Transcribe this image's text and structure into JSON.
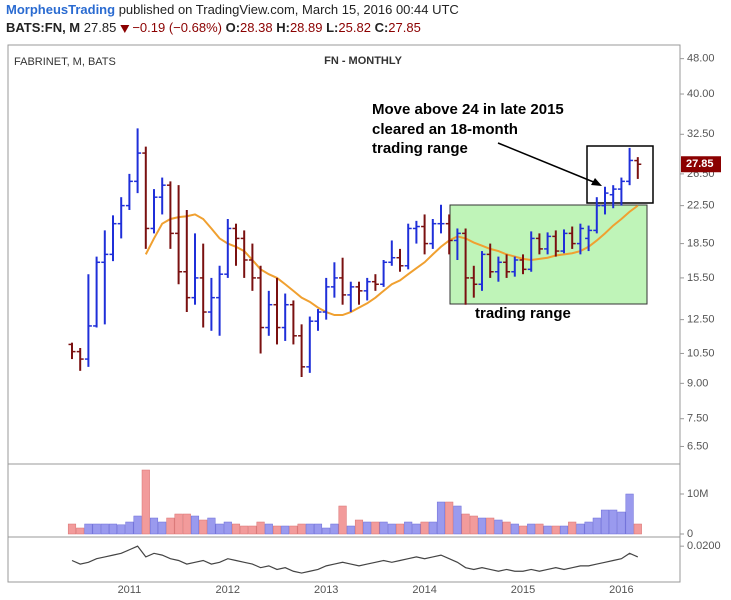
{
  "header": {
    "author": "MorpheusTrading",
    "published": "published on TradingView.com, March 15, 2016 00:44 UTC",
    "symbol": "BATS:FN, M",
    "change": {
      "value": -0.19,
      "label": "−0.19"
    },
    "change_pct": {
      "value": -0.68,
      "label": "(−0.68%)"
    },
    "ohlc_labels": [
      "O:",
      "H:",
      "L:",
      "C:"
    ]
  },
  "chart_data": {
    "type": "ohlc",
    "title": "FN - MONTHLY",
    "subtitle": "FABRINET, M, BATS",
    "annotations": [
      "Move above 24 in late 2015",
      "cleared an 18-month",
      "trading range",
      "trading range"
    ],
    "categories": [
      null,
      null,
      null,
      null,
      null,
      null,
      null,
      "2011",
      null,
      null,
      null,
      null,
      null,
      null,
      null,
      null,
      null,
      null,
      null,
      "2012",
      null,
      null,
      null,
      null,
      null,
      null,
      null,
      null,
      null,
      null,
      null,
      "2013",
      null,
      null,
      null,
      null,
      null,
      null,
      null,
      null,
      null,
      null,
      null,
      "2014",
      null,
      null,
      null,
      null,
      null,
      null,
      null,
      null,
      null,
      null,
      null,
      "2015",
      null,
      null,
      null,
      null,
      null,
      null,
      null,
      null,
      null,
      null,
      null,
      "2016",
      null,
      null
    ],
    "open": [
      11,
      10.6,
      10.2,
      12.1,
      16.8,
      17.5,
      20.5,
      22.5,
      25.5,
      29.5,
      20,
      23.5,
      25,
      19.5,
      16,
      14,
      15.5,
      13,
      14,
      15.8,
      20,
      19,
      17,
      15.5,
      12,
      13.5,
      12,
      13.5,
      11.5,
      9.8,
      12.4,
      13,
      14.8,
      15.5,
      14.2,
      14.8,
      14.5,
      15.2,
      15,
      16.8,
      17.2,
      16.5,
      20,
      20.2,
      18.5,
      20.5,
      20.5,
      18.8,
      19.5,
      15.5,
      15,
      17.5,
      16,
      16.8,
      16,
      17,
      16.2,
      19,
      18,
      19.2,
      17.8,
      19.5,
      18.5,
      19,
      19.8,
      22.5,
      23.8,
      24.5,
      25.5,
      28.38
    ],
    "high": [
      11.1,
      10.8,
      15.8,
      17.3,
      19.8,
      21.4,
      23.5,
      26.5,
      33.5,
      30.5,
      24.5,
      26,
      25.5,
      25,
      22,
      19.5,
      18.5,
      15.5,
      16.5,
      21,
      20.5,
      19.8,
      18.5,
      16.5,
      14.5,
      15.5,
      14.3,
      13.8,
      12.2,
      12.7,
      13.2,
      15.5,
      16.8,
      17.2,
      15.2,
      15.2,
      15.5,
      15.8,
      17,
      18.8,
      18,
      20.5,
      20.8,
      21.5,
      21,
      22.6,
      21.5,
      20,
      20,
      16.5,
      17.8,
      18.5,
      17.3,
      17.5,
      17.3,
      17.5,
      19.7,
      19.5,
      19.6,
      19.8,
      19.9,
      20.2,
      20.5,
      20.3,
      23.5,
      24.8,
      25,
      26,
      30.3,
      28.89
    ],
    "low": [
      10.2,
      9.6,
      9.8,
      12,
      12.2,
      16.9,
      19,
      22,
      24,
      18,
      19.5,
      21.5,
      18,
      15,
      13,
      13.5,
      12,
      11.8,
      11.5,
      15.5,
      16.5,
      15.5,
      14.5,
      10.5,
      11.5,
      11,
      11.2,
      11,
      9.3,
      9.5,
      11.8,
      12.5,
      14,
      13.5,
      13,
      13.5,
      13.8,
      14.5,
      14.8,
      16.5,
      16,
      16.2,
      18.5,
      17.5,
      18,
      19.5,
      17.5,
      17,
      13.5,
      14,
      14.5,
      15.5,
      15.2,
      15.5,
      15.6,
      15.8,
      16,
      17.5,
      17.5,
      17.3,
      17.6,
      18,
      17.5,
      17.8,
      19.5,
      21.5,
      22.2,
      22.5,
      25,
      25.82
    ],
    "close": [
      10.6,
      10.2,
      12.1,
      16.8,
      17.5,
      20.5,
      22.5,
      25.5,
      29.5,
      20,
      23.5,
      25,
      19.5,
      16,
      14,
      15.5,
      13,
      14,
      15.8,
      20,
      19,
      17,
      15.5,
      12,
      13.5,
      12,
      13.5,
      11.5,
      9.8,
      12.4,
      13,
      14.8,
      15.5,
      14.2,
      14.8,
      14.5,
      15.2,
      15,
      16.8,
      17.2,
      16.5,
      20,
      20.2,
      18.5,
      20.5,
      20.5,
      18.8,
      19.5,
      15.5,
      15,
      17.5,
      16,
      16.8,
      16,
      17,
      16.2,
      19,
      18,
      19.2,
      17.8,
      19.5,
      18.5,
      20,
      19.8,
      22.5,
      24,
      24.5,
      25.5,
      28.4,
      27.85
    ],
    "up_color": "#1f2fd9",
    "down_color": "#7a1010",
    "last_price_color": "#8b0000",
    "log_scale": true,
    "ylim": [
      6,
      51.5
    ],
    "yticks": [
      {
        "value": 48,
        "label": "48.00"
      },
      {
        "value": 40,
        "label": "40.00"
      },
      {
        "value": 32.5,
        "label": "32.50"
      },
      {
        "value": 26.5,
        "label": "26.50"
      },
      {
        "value": 22.5,
        "label": "22.50"
      },
      {
        "value": 18.5,
        "label": "18.50"
      },
      {
        "value": 15.5,
        "label": "15.50"
      },
      {
        "value": 12.5,
        "label": "12.50"
      },
      {
        "value": 10.5,
        "label": "10.50"
      },
      {
        "value": 9,
        "label": "9.00"
      },
      {
        "value": 7.5,
        "label": "7.50"
      },
      {
        "value": 6.5,
        "label": "6.50"
      }
    ],
    "overlay": {
      "type": "line",
      "color": "#f0a030",
      "values": [
        null,
        null,
        null,
        null,
        null,
        null,
        null,
        null,
        null,
        17.5,
        19,
        20.5,
        21,
        21.2,
        21.3,
        21.5,
        21,
        20,
        19,
        18.5,
        18.2,
        17.8,
        17,
        16.2,
        15.8,
        15.5,
        15,
        14.5,
        14,
        13.7,
        13.3,
        13,
        12.8,
        12.8,
        13,
        13.3,
        13.6,
        14,
        14.5,
        15,
        15.3,
        15.8,
        16.3,
        16.8,
        17.5,
        18.2,
        18.8,
        19.2,
        19,
        18.6,
        18.3,
        18,
        17.8,
        17.5,
        17.3,
        17.1,
        17,
        17.1,
        17.2,
        17.4,
        17.5,
        17.6,
        17.8,
        18.2,
        18.8,
        19.5,
        20.3,
        21,
        21.8,
        22.5
      ]
    },
    "volume": {
      "type": "bar",
      "up_color": "#9a9aee",
      "down_color": "#f29b9b",
      "ylim": [
        0,
        17000000
      ],
      "yticks": [
        {
          "value": 10000000,
          "label": "10M"
        },
        0
      ],
      "values": [
        2500000,
        1500000,
        2500000,
        2500000,
        2500000,
        2500000,
        2300000,
        3000000,
        4500000,
        16000000,
        4000000,
        3000000,
        4000000,
        5000000,
        5000000,
        4500000,
        3500000,
        4000000,
        2500000,
        3000000,
        2500000,
        2000000,
        2000000,
        3000000,
        2500000,
        2000000,
        2000000,
        2000000,
        2500000,
        2500000,
        2500000,
        1500000,
        2500000,
        7000000,
        2000000,
        3500000,
        3000000,
        3000000,
        3000000,
        2500000,
        2500000,
        3000000,
        2500000,
        3000000,
        3000000,
        8000000,
        8000000,
        7000000,
        5000000,
        4500000,
        4000000,
        4000000,
        3500000,
        3000000,
        2500000,
        2000000,
        2500000,
        2500000,
        2000000,
        2000000,
        2000000,
        3000000,
        2500000,
        3000000,
        4000000,
        6000000,
        6000000,
        5500000,
        10000000,
        2500000
      ]
    },
    "indicator": {
      "type": "line",
      "color": "#444",
      "ylim": [
        0,
        0.024
      ],
      "yticks": [
        {
          "value": 0.02,
          "label": "0.0200"
        }
      ],
      "values": [
        0.012,
        0.01,
        0.011,
        0.013,
        0.014,
        0.015,
        0.016,
        0.018,
        0.02,
        0.014,
        0.016,
        0.015,
        0.013,
        0.012,
        0.01,
        0.011,
        0.012,
        0.01,
        0.011,
        0.013,
        0.012,
        0.011,
        0.01,
        0.008,
        0.009,
        0.007,
        0.008,
        0.006,
        0.005,
        0.006,
        0.007,
        0.009,
        0.01,
        0.011,
        0.01,
        0.009,
        0.01,
        0.011,
        0.012,
        0.011,
        0.012,
        0.013,
        0.014,
        0.013,
        0.014,
        0.015,
        0.013,
        0.011,
        0.008,
        0.007,
        0.008,
        0.007,
        0.006,
        0.007,
        0.006,
        0.006,
        0.007,
        0.006,
        0.007,
        0.008,
        0.007,
        0.008,
        0.009,
        0.009,
        0.01,
        0.011,
        0.012,
        0.013,
        0.016,
        0.014
      ]
    }
  }
}
